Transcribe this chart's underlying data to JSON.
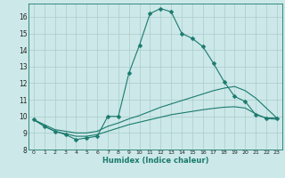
{
  "xlabel": "Humidex (Indice chaleur)",
  "xlim": [
    -0.5,
    23.5
  ],
  "ylim": [
    8,
    16.8
  ],
  "yticks": [
    8,
    9,
    10,
    11,
    12,
    13,
    14,
    15,
    16
  ],
  "xticks": [
    0,
    1,
    2,
    3,
    4,
    5,
    6,
    7,
    8,
    9,
    10,
    11,
    12,
    13,
    14,
    15,
    16,
    17,
    18,
    19,
    20,
    21,
    22,
    23
  ],
  "bg_color": "#cce8e8",
  "line_color": "#1a7a6e",
  "grid_color": "#aacccc",
  "series": [
    {
      "x": [
        0,
        1,
        2,
        3,
        4,
        5,
        6,
        7,
        8,
        9,
        10,
        11,
        12,
        13,
        14,
        15,
        16,
        17,
        18,
        19,
        20,
        21,
        22,
        23
      ],
      "y": [
        9.8,
        9.4,
        9.1,
        8.9,
        8.6,
        8.7,
        8.8,
        10.0,
        10.0,
        12.6,
        14.3,
        16.2,
        16.5,
        16.3,
        15.0,
        14.7,
        14.2,
        13.2,
        12.1,
        11.2,
        10.9,
        10.1,
        9.9,
        9.9
      ],
      "marker": "D",
      "markersize": 2.5
    },
    {
      "x": [
        0,
        1,
        2,
        3,
        4,
        5,
        6,
        7,
        8,
        9,
        10,
        11,
        12,
        13,
        14,
        15,
        16,
        17,
        18,
        19,
        20,
        21,
        22,
        23
      ],
      "y": [
        9.8,
        9.5,
        9.2,
        9.1,
        9.0,
        9.0,
        9.1,
        9.4,
        9.6,
        9.85,
        10.05,
        10.3,
        10.55,
        10.75,
        10.95,
        11.15,
        11.35,
        11.55,
        11.7,
        11.8,
        11.55,
        11.1,
        10.5,
        9.9
      ],
      "marker": null,
      "markersize": 0
    },
    {
      "x": [
        0,
        1,
        2,
        3,
        4,
        5,
        6,
        7,
        8,
        9,
        10,
        11,
        12,
        13,
        14,
        15,
        16,
        17,
        18,
        19,
        20,
        21,
        22,
        23
      ],
      "y": [
        9.8,
        9.4,
        9.1,
        8.95,
        8.8,
        8.8,
        8.9,
        9.1,
        9.3,
        9.5,
        9.65,
        9.8,
        9.95,
        10.1,
        10.2,
        10.3,
        10.4,
        10.48,
        10.55,
        10.58,
        10.5,
        10.15,
        9.88,
        9.82
      ],
      "marker": null,
      "markersize": 0
    }
  ]
}
